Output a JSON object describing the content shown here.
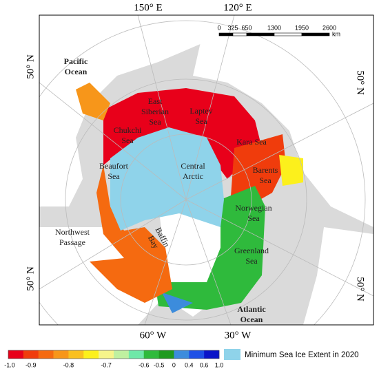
{
  "graticule_labels": {
    "top": [
      "150° E",
      "120° E"
    ],
    "bottom": [
      "60° W",
      "30° W"
    ],
    "left": [
      "50° N",
      "50° N"
    ],
    "right": [
      "50° N",
      "50° N"
    ]
  },
  "scale_bar": {
    "labels": [
      "0",
      "325",
      "650",
      "1300",
      "1950",
      "2600"
    ],
    "unit": "km"
  },
  "regions": [
    {
      "lines": [
        "Pacific",
        "Ocean"
      ]
    },
    {
      "lines": [
        "East",
        "Siberian",
        "Sea"
      ]
    },
    {
      "lines": [
        "Laptev",
        "Sea"
      ]
    },
    {
      "lines": [
        "Chukchi",
        "Sea"
      ]
    },
    {
      "lines": [
        "Beaufort",
        "Sea"
      ]
    },
    {
      "lines": [
        "Central",
        "Arctic"
      ]
    },
    {
      "lines": [
        "Kara Sea"
      ]
    },
    {
      "lines": [
        "Barents",
        "Sea"
      ]
    },
    {
      "lines": [
        "Norwegian",
        "Sea"
      ]
    },
    {
      "lines": [
        "Greenland",
        "Sea"
      ]
    },
    {
      "lines": [
        "Baffin",
        "Bay"
      ]
    },
    {
      "lines": [
        "Northwest",
        "Passage"
      ]
    },
    {
      "lines": [
        "Atlantic",
        "Ocean"
      ]
    }
  ],
  "legend": {
    "colors": [
      "#e8001a",
      "#f03c0c",
      "#f56a10",
      "#f7961a",
      "#f9c020",
      "#fcf01c",
      "#f6f48a",
      "#bff0a0",
      "#6fe8a8",
      "#2fba3c",
      "#1e9a1e",
      "#3c8cdc",
      "#1e50e6",
      "#0a14c8"
    ],
    "tick_labels": [
      "-1.0",
      "-0.9",
      "-0.8",
      "-0.7",
      "-0.6",
      "-0.5",
      "0",
      "0.4",
      "0.6",
      "1.0"
    ],
    "ice_label": "Minimum Sea Ice Extent in 2020",
    "ice_color": "#8fd3ea"
  }
}
